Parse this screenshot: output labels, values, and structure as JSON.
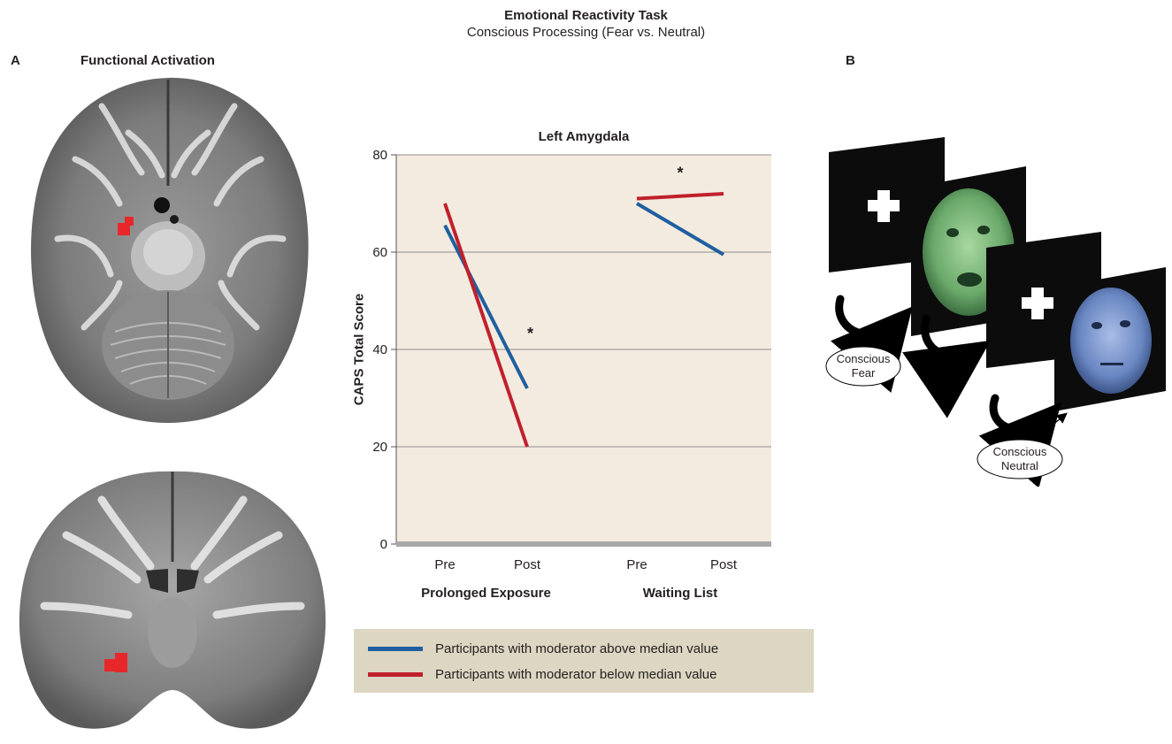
{
  "figure": {
    "title": "Emotional Reactivity Task",
    "subtitle": "Conscious Processing (Fear vs. Neutral)",
    "panel_a_label": "A",
    "panel_a_title": "Functional Activation",
    "panel_b_label": "B"
  },
  "colors": {
    "above_median": "#1f5fa0",
    "below_median": "#c0202c",
    "plot_bg": "#f3ebdf",
    "legend_bg": "#ddd6c2",
    "activation": "#e8272a"
  },
  "chart_data": {
    "type": "line",
    "title": "Left Amygdala",
    "ylabel": "CAPS Total Score",
    "xlabel": "",
    "ylim": [
      0,
      80
    ],
    "yticks": [
      0,
      20,
      40,
      60,
      80
    ],
    "grid": true,
    "groups": [
      {
        "name": "Prolonged Exposure",
        "categories": [
          "Pre",
          "Post"
        ]
      },
      {
        "name": "Waiting List",
        "categories": [
          "Pre",
          "Post"
        ]
      }
    ],
    "series": [
      {
        "name": "Participants with moderator above median value",
        "color": "#1f5fa0",
        "values": {
          "Prolonged Exposure": [
            65.5,
            32
          ],
          "Waiting List": [
            70,
            59.5
          ]
        }
      },
      {
        "name": "Participants with moderator below median value",
        "color": "#c0202c",
        "values": {
          "Prolonged Exposure": [
            70,
            20
          ],
          "Waiting List": [
            71,
            72
          ]
        }
      }
    ],
    "annotations": [
      {
        "text": "*",
        "group": "Prolonged Exposure",
        "y": 44
      },
      {
        "text": "*",
        "group": "Waiting List",
        "y": 77
      }
    ],
    "legend_position": "bottom"
  },
  "task_panel": {
    "icons": [
      "fixation-cross-icon",
      "fear-face-icon",
      "neutral-face-icon",
      "curved-arrow-icon"
    ],
    "callouts": [
      {
        "line1": "Conscious",
        "line2": "Fear"
      },
      {
        "line1": "Conscious",
        "line2": "Neutral"
      }
    ]
  }
}
